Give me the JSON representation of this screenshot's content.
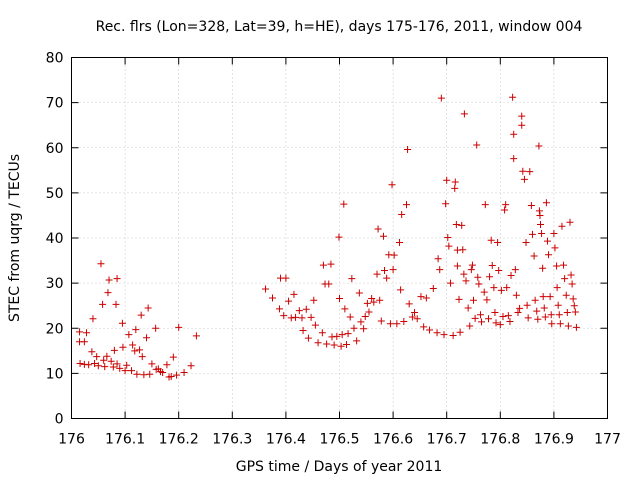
{
  "chart_data": {
    "type": "scatter",
    "title": "Rec. flrs (Lon=328, Lat=39, h=HE), days 175-176, 2011, window 004",
    "xlabel": "GPS time / Days of year 2011",
    "ylabel": "STEC from uqrg / TECUs",
    "xlim": [
      176,
      177
    ],
    "ylim": [
      0,
      80
    ],
    "xticks": [
      176,
      176.1,
      176.2,
      176.3,
      176.4,
      176.5,
      176.6,
      176.7,
      176.8,
      176.9,
      177
    ],
    "xtick_labels": [
      "176",
      "176.1",
      "176.2",
      "176.3",
      "176.4",
      "176.5",
      "176.6",
      "176.7",
      "176.8",
      "176.9",
      "177"
    ],
    "yticks": [
      0,
      10,
      20,
      30,
      40,
      50,
      60,
      70,
      80
    ],
    "ytick_labels": [
      "0",
      "10",
      "20",
      "30",
      "40",
      "50",
      "60",
      "70",
      "80"
    ],
    "grid": true,
    "marker": "plus",
    "color": "#cc0000",
    "points": [
      [
        176.015,
        19.2
      ],
      [
        176.015,
        17.0
      ],
      [
        176.016,
        12.2
      ],
      [
        176.024,
        17.0
      ],
      [
        176.024,
        12.0
      ],
      [
        176.028,
        19.0
      ],
      [
        176.032,
        11.9
      ],
      [
        176.038,
        14.8
      ],
      [
        176.04,
        22.1
      ],
      [
        176.043,
        12.2
      ],
      [
        176.047,
        13.7
      ],
      [
        176.05,
        11.7
      ],
      [
        176.055,
        34.3
      ],
      [
        176.058,
        25.3
      ],
      [
        176.06,
        12.9
      ],
      [
        176.062,
        11.5
      ],
      [
        176.066,
        13.8
      ],
      [
        176.068,
        27.9
      ],
      [
        176.07,
        30.7
      ],
      [
        176.074,
        12.7
      ],
      [
        176.078,
        11.4
      ],
      [
        176.08,
        15.1
      ],
      [
        176.083,
        25.3
      ],
      [
        176.085,
        31.0
      ],
      [
        176.085,
        12.1
      ],
      [
        176.09,
        11.1
      ],
      [
        176.095,
        21.1
      ],
      [
        176.096,
        15.8
      ],
      [
        176.1,
        10.6
      ],
      [
        176.103,
        11.8
      ],
      [
        176.107,
        18.6
      ],
      [
        176.112,
        10.6
      ],
      [
        176.114,
        16.3
      ],
      [
        176.118,
        15.0
      ],
      [
        176.12,
        19.7
      ],
      [
        176.122,
        9.8
      ],
      [
        176.127,
        15.2
      ],
      [
        176.13,
        22.9
      ],
      [
        176.132,
        13.7
      ],
      [
        176.135,
        9.7
      ],
      [
        176.14,
        17.9
      ],
      [
        176.143,
        24.5
      ],
      [
        176.146,
        9.8
      ],
      [
        176.15,
        12.1
      ],
      [
        176.157,
        20.0
      ],
      [
        176.158,
        10.9
      ],
      [
        176.162,
        11.0
      ],
      [
        176.166,
        10.4
      ],
      [
        176.17,
        10.2
      ],
      [
        176.178,
        11.9
      ],
      [
        176.182,
        9.2
      ],
      [
        176.186,
        9.3
      ],
      [
        176.19,
        13.6
      ],
      [
        176.196,
        9.6
      ],
      [
        176.2,
        20.2
      ],
      [
        176.21,
        10.2
      ],
      [
        176.223,
        11.7
      ],
      [
        176.233,
        18.3
      ],
      [
        176.362,
        28.7
      ],
      [
        176.375,
        26.7
      ],
      [
        176.388,
        24.3
      ],
      [
        176.39,
        31.1
      ],
      [
        176.396,
        22.8
      ],
      [
        176.4,
        31.1
      ],
      [
        176.405,
        26.0
      ],
      [
        176.41,
        22.3
      ],
      [
        176.415,
        27.5
      ],
      [
        176.418,
        22.4
      ],
      [
        176.425,
        23.9
      ],
      [
        176.43,
        22.3
      ],
      [
        176.432,
        19.5
      ],
      [
        176.438,
        24.2
      ],
      [
        176.442,
        17.8
      ],
      [
        176.447,
        22.4
      ],
      [
        176.452,
        26.2
      ],
      [
        176.455,
        20.7
      ],
      [
        176.46,
        16.8
      ],
      [
        176.468,
        19.0
      ],
      [
        176.47,
        34.0
      ],
      [
        176.473,
        29.8
      ],
      [
        176.476,
        16.5
      ],
      [
        176.48,
        29.8
      ],
      [
        176.484,
        34.2
      ],
      [
        176.486,
        18.1
      ],
      [
        176.49,
        16.3
      ],
      [
        176.495,
        18.2
      ],
      [
        176.499,
        40.2
      ],
      [
        176.5,
        26.6
      ],
      [
        176.503,
        16.0
      ],
      [
        176.505,
        18.6
      ],
      [
        176.508,
        47.5
      ],
      [
        176.51,
        24.3
      ],
      [
        176.513,
        16.4
      ],
      [
        176.516,
        18.8
      ],
      [
        176.52,
        22.5
      ],
      [
        176.523,
        31.0
      ],
      [
        176.527,
        20.0
      ],
      [
        176.532,
        17.2
      ],
      [
        176.537,
        27.8
      ],
      [
        176.54,
        21.4
      ],
      [
        176.545,
        19.9
      ],
      [
        176.548,
        22.6
      ],
      [
        176.552,
        25.5
      ],
      [
        176.555,
        23.6
      ],
      [
        176.56,
        26.6
      ],
      [
        176.564,
        25.8
      ],
      [
        176.57,
        32.0
      ],
      [
        176.572,
        42.0
      ],
      [
        176.575,
        26.2
      ],
      [
        176.578,
        21.6
      ],
      [
        176.582,
        40.4
      ],
      [
        176.584,
        32.8
      ],
      [
        176.588,
        31.1
      ],
      [
        176.592,
        36.3
      ],
      [
        176.595,
        21.0
      ],
      [
        176.598,
        51.8
      ],
      [
        176.6,
        33.0
      ],
      [
        176.602,
        36.2
      ],
      [
        176.607,
        21.0
      ],
      [
        176.612,
        39.0
      ],
      [
        176.614,
        28.5
      ],
      [
        176.616,
        45.2
      ],
      [
        176.62,
        21.5
      ],
      [
        176.625,
        47.4
      ],
      [
        176.627,
        59.6
      ],
      [
        176.63,
        25.4
      ],
      [
        176.636,
        22.5
      ],
      [
        176.64,
        23.5
      ],
      [
        176.645,
        22.1
      ],
      [
        176.652,
        27.0
      ],
      [
        176.657,
        20.3
      ],
      [
        176.662,
        26.7
      ],
      [
        176.668,
        19.6
      ],
      [
        176.675,
        28.8
      ],
      [
        176.682,
        19.0
      ],
      [
        176.684,
        35.4
      ],
      [
        176.687,
        33.0
      ],
      [
        176.69,
        71.0
      ],
      [
        176.695,
        18.6
      ],
      [
        176.698,
        47.6
      ],
      [
        176.7,
        52.8
      ],
      [
        176.702,
        40.1
      ],
      [
        176.704,
        38.2
      ],
      [
        176.707,
        30.0
      ],
      [
        176.712,
        18.4
      ],
      [
        176.715,
        51.0
      ],
      [
        176.716,
        52.4
      ],
      [
        176.718,
        43.0
      ],
      [
        176.72,
        37.3
      ],
      [
        176.72,
        33.8
      ],
      [
        176.723,
        26.4
      ],
      [
        176.725,
        19.1
      ],
      [
        176.728,
        42.8
      ],
      [
        176.73,
        37.4
      ],
      [
        176.732,
        32.0
      ],
      [
        176.733,
        67.5
      ],
      [
        176.736,
        30.5
      ],
      [
        176.74,
        24.5
      ],
      [
        176.743,
        20.5
      ],
      [
        176.746,
        33.0
      ],
      [
        176.748,
        34.0
      ],
      [
        176.75,
        26.2
      ],
      [
        176.753,
        22.2
      ],
      [
        176.756,
        60.6
      ],
      [
        176.758,
        31.3
      ],
      [
        176.76,
        29.8
      ],
      [
        176.763,
        23.0
      ],
      [
        176.765,
        21.4
      ],
      [
        176.77,
        28.0
      ],
      [
        176.772,
        47.4
      ],
      [
        176.775,
        26.3
      ],
      [
        176.778,
        22.1
      ],
      [
        176.78,
        31.4
      ],
      [
        176.783,
        39.5
      ],
      [
        176.785,
        33.9
      ],
      [
        176.788,
        29.0
      ],
      [
        176.79,
        23.5
      ],
      [
        176.792,
        21.2
      ],
      [
        176.795,
        39.0
      ],
      [
        176.797,
        32.8
      ],
      [
        176.8,
        20.8
      ],
      [
        176.802,
        28.4
      ],
      [
        176.805,
        22.6
      ],
      [
        176.808,
        46.2
      ],
      [
        176.81,
        47.4
      ],
      [
        176.812,
        29.0
      ],
      [
        176.815,
        22.8
      ],
      [
        176.818,
        21.5
      ],
      [
        176.82,
        31.7
      ],
      [
        176.823,
        71.2
      ],
      [
        176.825,
        63.0
      ],
      [
        176.825,
        57.6
      ],
      [
        176.828,
        33.0
      ],
      [
        176.83,
        27.3
      ],
      [
        176.833,
        23.5
      ],
      [
        176.836,
        24.4
      ],
      [
        176.84,
        67.0
      ],
      [
        176.84,
        65.0
      ],
      [
        176.842,
        54.8
      ],
      [
        176.845,
        53.0
      ],
      [
        176.848,
        39.0
      ],
      [
        176.85,
        25.1
      ],
      [
        176.852,
        22.3
      ],
      [
        176.855,
        54.7
      ],
      [
        176.858,
        47.2
      ],
      [
        176.86,
        40.8
      ],
      [
        176.863,
        36.0
      ],
      [
        176.865,
        26.2
      ],
      [
        176.868,
        23.8
      ],
      [
        176.87,
        22.0
      ],
      [
        176.872,
        60.4
      ],
      [
        176.873,
        46.0
      ],
      [
        176.874,
        45.0
      ],
      [
        176.875,
        43.0
      ],
      [
        176.877,
        41.0
      ],
      [
        176.879,
        33.3
      ],
      [
        176.88,
        27.0
      ],
      [
        176.882,
        24.5
      ],
      [
        176.884,
        22.5
      ],
      [
        176.886,
        47.8
      ],
      [
        176.888,
        39.3
      ],
      [
        176.89,
        36.3
      ],
      [
        176.893,
        27.0
      ],
      [
        176.895,
        23.0
      ],
      [
        176.896,
        21.0
      ],
      [
        176.9,
        41.0
      ],
      [
        176.902,
        37.8
      ],
      [
        176.905,
        33.8
      ],
      [
        176.906,
        29.0
      ],
      [
        176.908,
        25.1
      ],
      [
        176.91,
        23.0
      ],
      [
        176.912,
        21.0
      ],
      [
        176.915,
        42.6
      ],
      [
        176.918,
        34.0
      ],
      [
        176.92,
        31.0
      ],
      [
        176.923,
        27.3
      ],
      [
        176.925,
        23.5
      ],
      [
        176.927,
        20.5
      ],
      [
        176.93,
        43.5
      ],
      [
        176.932,
        31.8
      ],
      [
        176.934,
        29.8
      ],
      [
        176.936,
        26.5
      ],
      [
        176.938,
        25.0
      ],
      [
        176.94,
        23.6
      ],
      [
        176.942,
        20.2
      ]
    ]
  }
}
